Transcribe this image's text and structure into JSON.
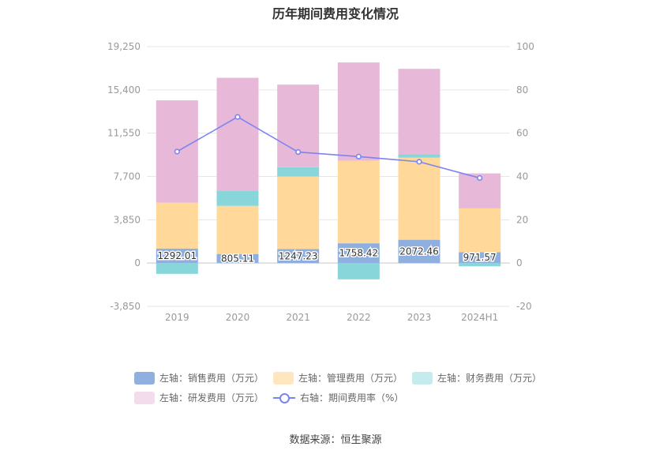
{
  "chart_data": {
    "type": "bar",
    "title": "历年期间费用变化情况",
    "categories": [
      "2019",
      "2020",
      "2021",
      "2022",
      "2023",
      "2024H1"
    ],
    "left_axis": {
      "min": -3850,
      "max": 19250,
      "ticks": [
        "19,250",
        "15,400",
        "11,550",
        "7,700",
        "3,850",
        "0",
        "-3,850"
      ]
    },
    "right_axis": {
      "min": -20,
      "max": 100,
      "ticks": [
        "100",
        "80",
        "60",
        "40",
        "20",
        "0",
        "-20"
      ]
    },
    "series": [
      {
        "name": "左轴：销售费用（万元）",
        "color": "#8fb0df",
        "values": [
          1292.01,
          805.11,
          1247.23,
          1758.42,
          2072.46,
          971.57
        ],
        "labels": [
          "1292.01",
          "805.11",
          "1247.23",
          "1758.42",
          "2072.46",
          "971.57"
        ]
      },
      {
        "name": "左轴：管理费用（万元）",
        "color": "#ffd89a",
        "values": [
          4080,
          4280,
          6450,
          7350,
          7300,
          3890
        ]
      },
      {
        "name": "左轴：财务费用（万元）",
        "color": "#88d6d9",
        "values": [
          -960,
          1360,
          820,
          -1450,
          290,
          -290
        ]
      },
      {
        "name": "左轴：研发费用（万元）",
        "color": "#e8b8d9",
        "values": [
          9100,
          10030,
          7350,
          8730,
          7610,
          3110
        ]
      }
    ],
    "line_series": {
      "name": "右轴：期间费用率（%）",
      "color": "#7b84f0",
      "values": [
        51.5,
        67.5,
        51.3,
        49.2,
        46.8,
        39.3
      ]
    },
    "legend_position": "bottom",
    "grid": true
  },
  "source": "数据来源：恒生聚源"
}
